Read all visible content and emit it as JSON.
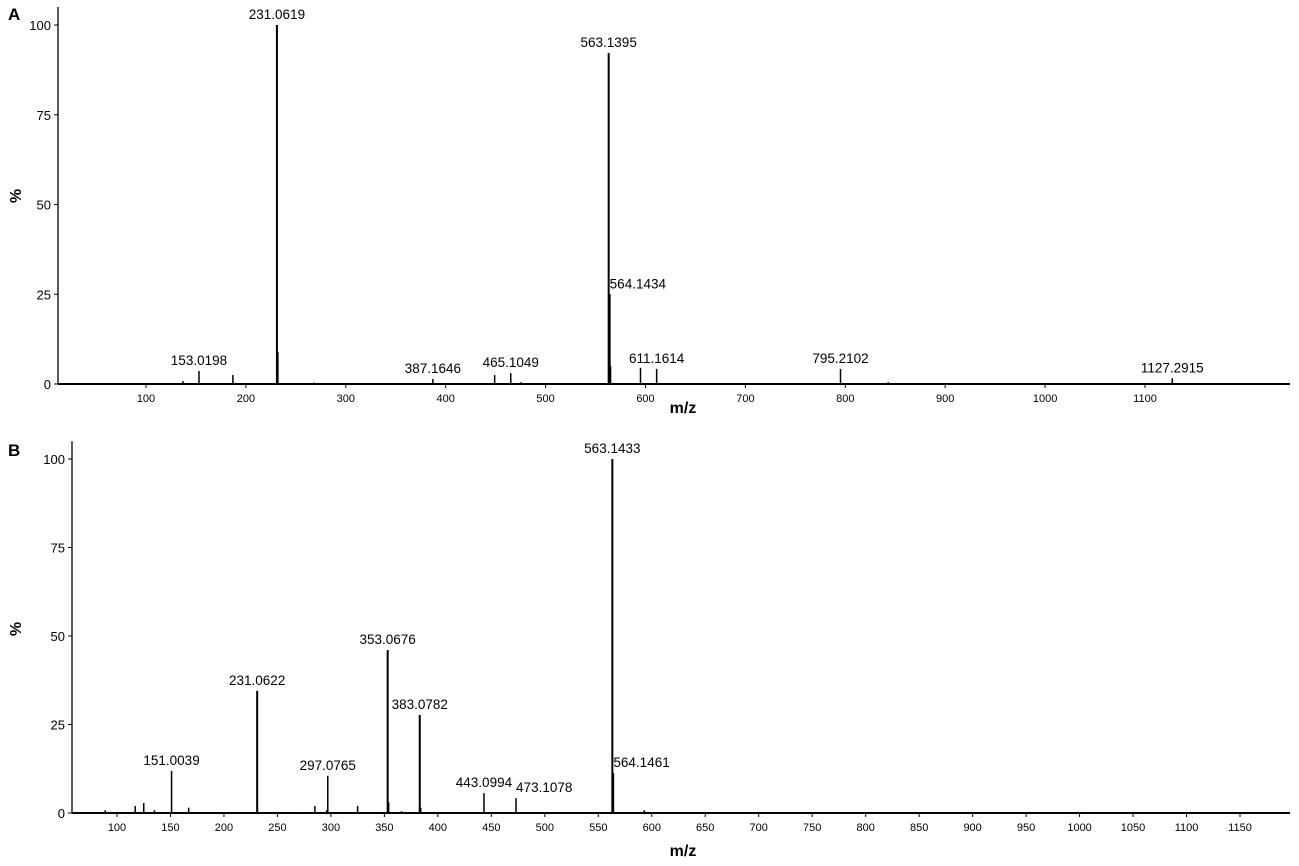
{
  "chart_data": [
    {
      "type": "bar",
      "panel_label": "A",
      "xlabel": "m/z",
      "ylabel": "%",
      "xlim": [
        15,
        1239
      ],
      "ylim": [
        0,
        105
      ],
      "xticks": [
        100,
        200,
        300,
        400,
        500,
        600,
        700,
        800,
        900,
        1000,
        1100
      ],
      "yticks": [
        0,
        25,
        50,
        75,
        100
      ],
      "grid": false,
      "peaks": [
        {
          "mz": 137,
          "intensity": 0.8
        },
        {
          "mz": 153.0198,
          "intensity": 3.6,
          "label": "153.0198"
        },
        {
          "mz": 187,
          "intensity": 2.5
        },
        {
          "mz": 231.0619,
          "intensity": 100,
          "label": "231.0619"
        },
        {
          "mz": 232,
          "intensity": 8.9
        },
        {
          "mz": 268,
          "intensity": 0.4
        },
        {
          "mz": 387.1646,
          "intensity": 1.4,
          "label": "387.1646"
        },
        {
          "mz": 449,
          "intensity": 2.5
        },
        {
          "mz": 465.1049,
          "intensity": 3.0,
          "label": "465.1049"
        },
        {
          "mz": 475,
          "intensity": 0.5
        },
        {
          "mz": 563.1395,
          "intensity": 92.2,
          "label": "563.1395"
        },
        {
          "mz": 564.1434,
          "intensity": 25,
          "label": "564.1434",
          "anchor": "start"
        },
        {
          "mz": 565,
          "intensity": 5
        },
        {
          "mz": 595,
          "intensity": 4.5
        },
        {
          "mz": 611.1614,
          "intensity": 4.2,
          "label": "611.1614"
        },
        {
          "mz": 795.2102,
          "intensity": 4.2,
          "label": "795.2102"
        },
        {
          "mz": 843,
          "intensity": 0.5
        },
        {
          "mz": 1127.2915,
          "intensity": 1.6,
          "label": "1127.2915"
        }
      ]
    },
    {
      "type": "bar",
      "panel_label": "B",
      "xlabel": "m/z",
      "ylabel": "%",
      "xlim": [
        58,
        1197
      ],
      "ylim": [
        0,
        105
      ],
      "xticks": [
        100,
        150,
        200,
        250,
        300,
        350,
        400,
        450,
        500,
        550,
        600,
        650,
        700,
        750,
        800,
        850,
        900,
        950,
        1000,
        1050,
        1100,
        1150
      ],
      "yticks": [
        0,
        25,
        50,
        75,
        100
      ],
      "grid": false,
      "peaks": [
        {
          "mz": 89,
          "intensity": 0.8
        },
        {
          "mz": 117,
          "intensity": 2
        },
        {
          "mz": 125,
          "intensity": 2.8
        },
        {
          "mz": 135,
          "intensity": 0.8
        },
        {
          "mz": 151.0039,
          "intensity": 11.9,
          "label": "151.0039"
        },
        {
          "mz": 167,
          "intensity": 1.5
        },
        {
          "mz": 231.0622,
          "intensity": 34.5,
          "label": "231.0622"
        },
        {
          "mz": 270,
          "intensity": 0.3
        },
        {
          "mz": 285,
          "intensity": 2
        },
        {
          "mz": 296,
          "intensity": 0.8
        },
        {
          "mz": 297.0765,
          "intensity": 10.5,
          "label": "297.0765"
        },
        {
          "mz": 325,
          "intensity": 2
        },
        {
          "mz": 353.0676,
          "intensity": 46,
          "label": "353.0676"
        },
        {
          "mz": 354,
          "intensity": 3
        },
        {
          "mz": 366,
          "intensity": 0.5
        },
        {
          "mz": 383.0782,
          "intensity": 27.7,
          "label": "383.0782"
        },
        {
          "mz": 384,
          "intensity": 1.5
        },
        {
          "mz": 443.0994,
          "intensity": 5.6,
          "label": "443.0994"
        },
        {
          "mz": 473.1078,
          "intensity": 4.2,
          "label": "473.1078",
          "anchor": "start"
        },
        {
          "mz": 563.1433,
          "intensity": 100,
          "label": "563.1433"
        },
        {
          "mz": 564.1461,
          "intensity": 11.3,
          "label": "564.1461",
          "anchor": "start"
        },
        {
          "mz": 593,
          "intensity": 0.8
        }
      ]
    }
  ]
}
